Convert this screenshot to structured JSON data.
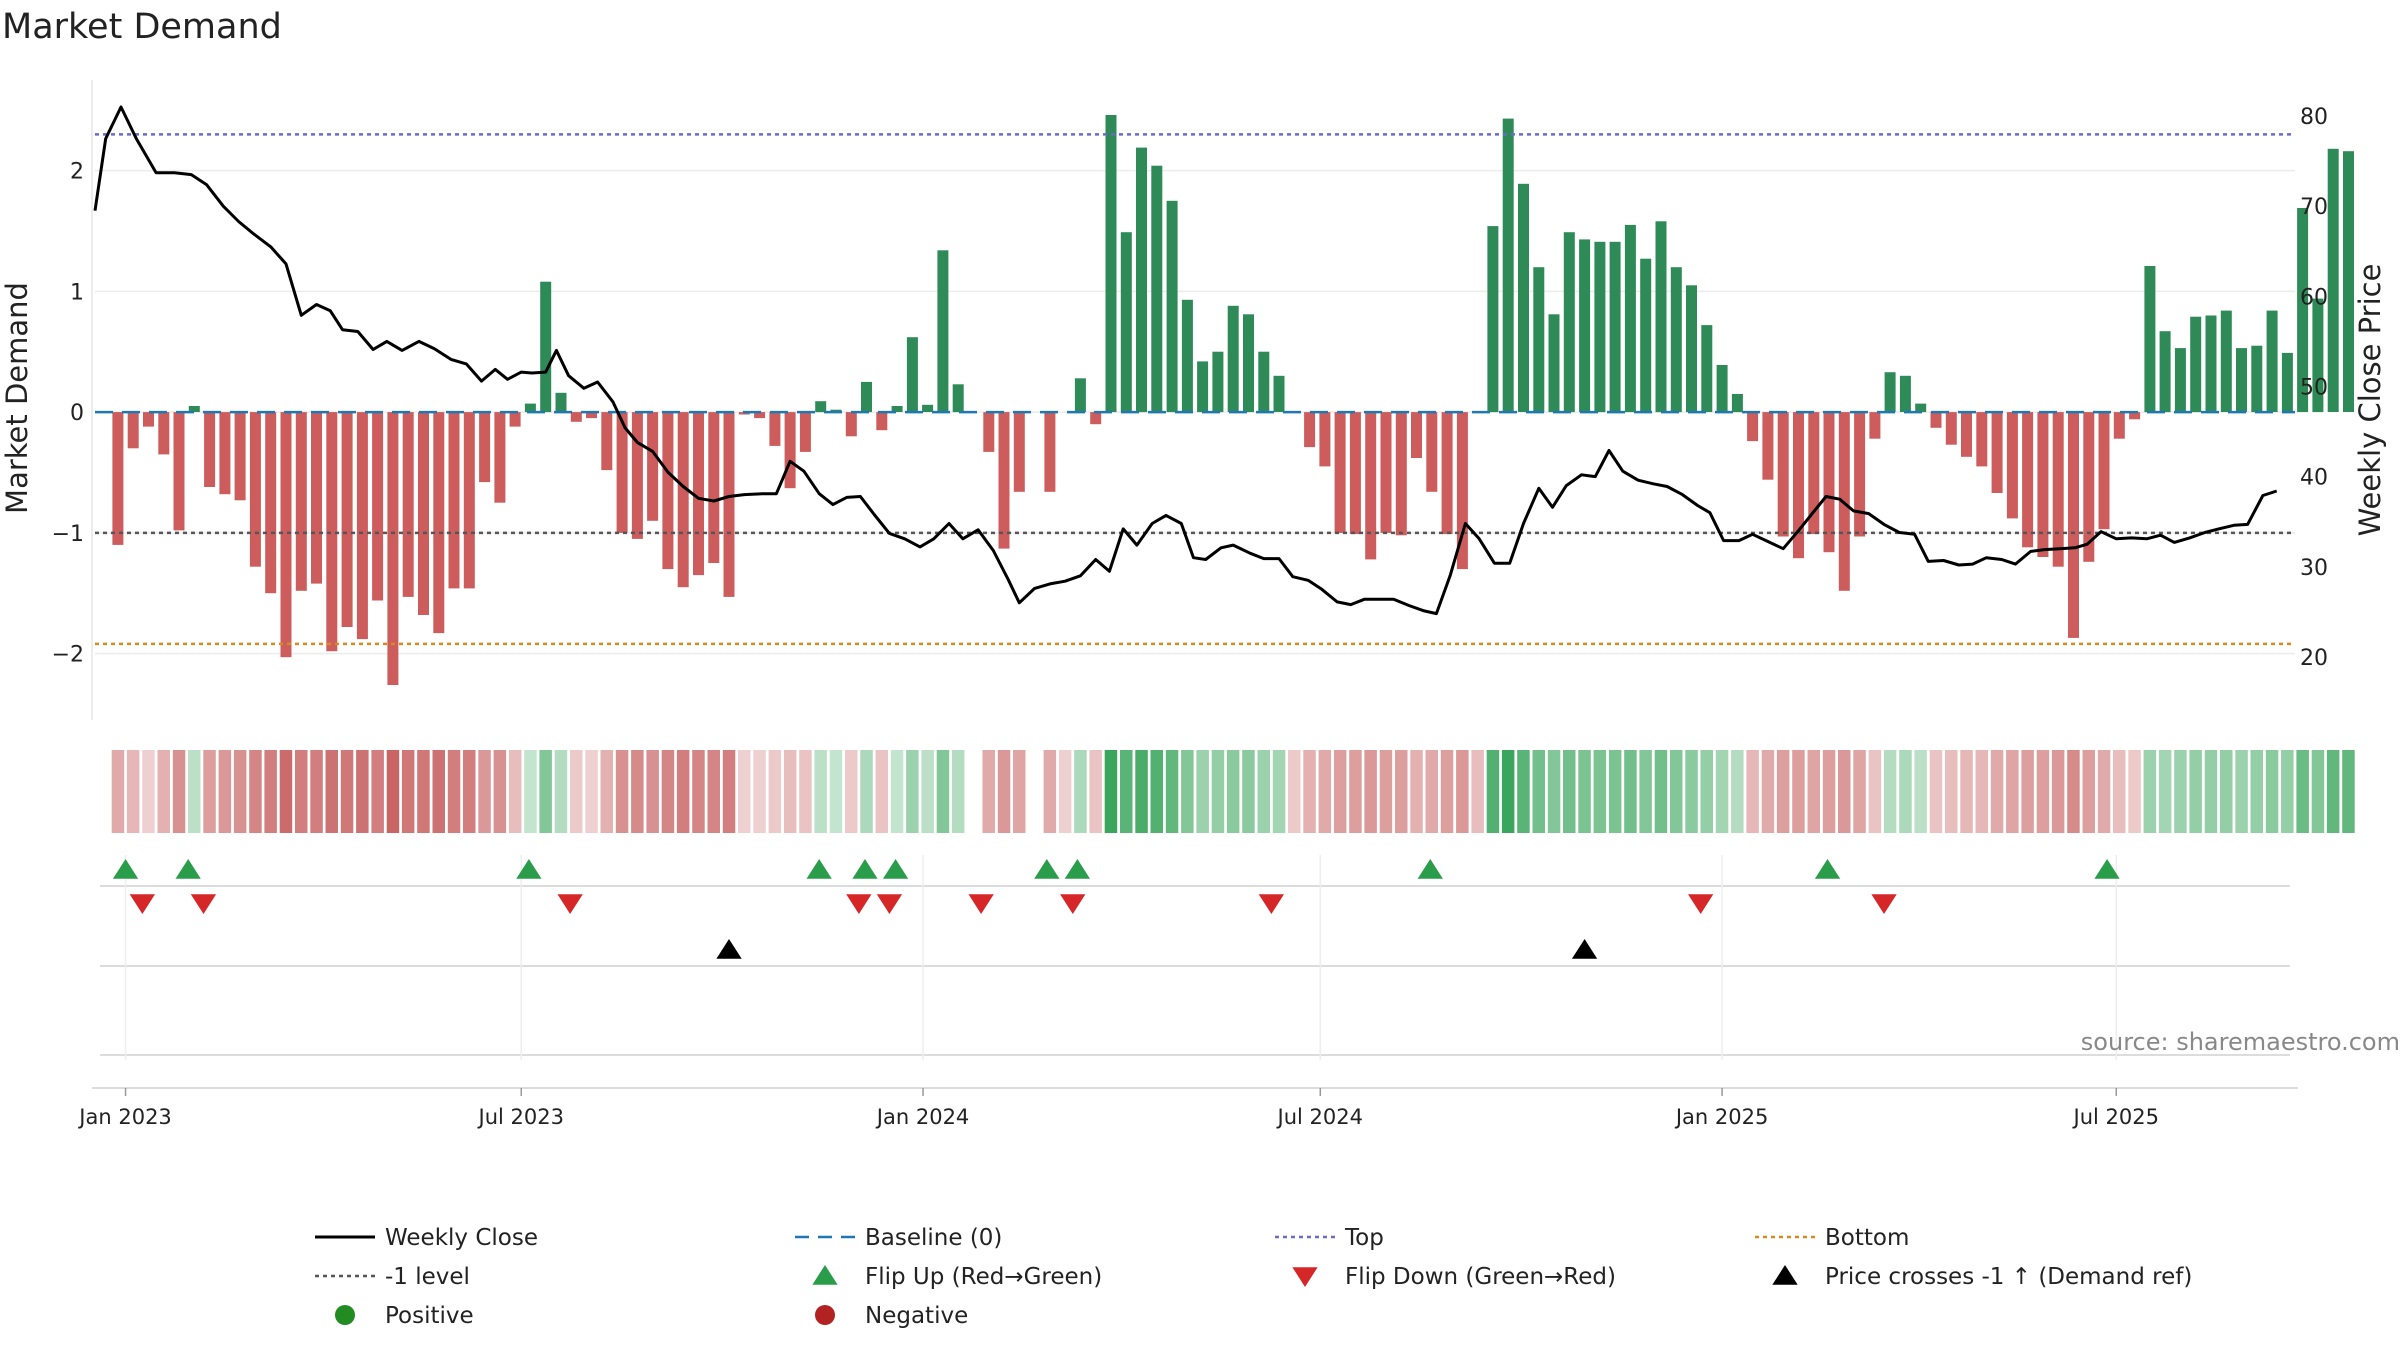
{
  "chart_data": {
    "type": "bar",
    "title": "Market Demand",
    "ylabel": "Market Demand",
    "y2label": "Weekly Close Price",
    "ylim": [
      -2.55,
      2.75
    ],
    "y2lim": [
      13,
      84
    ],
    "yticks": [
      {
        "value": 2,
        "label": "2"
      },
      {
        "value": 1,
        "label": "1"
      },
      {
        "value": 0,
        "label": "0"
      },
      {
        "value": -1,
        "label": "−1"
      },
      {
        "value": -2,
        "label": "−2"
      }
    ],
    "y2ticks": [
      {
        "value": 80,
        "label": "80"
      },
      {
        "value": 70,
        "label": "70"
      },
      {
        "value": 60,
        "label": "60"
      },
      {
        "value": 50,
        "label": "50"
      },
      {
        "value": 40,
        "label": "40"
      },
      {
        "value": 30,
        "label": "30"
      },
      {
        "value": 20,
        "label": "20"
      }
    ],
    "x_range_weeks": [
      -1.5,
      142.5
    ],
    "xticks": [
      {
        "label": "Jan 2023",
        "week": 0.5
      },
      {
        "label": "Jul 2023",
        "week": 26.4
      },
      {
        "label": "Jan 2024",
        "week": 52.7
      },
      {
        "label": "Jul 2024",
        "week": 78.7
      },
      {
        "label": "Jan 2025",
        "week": 105.0
      },
      {
        "label": "Jul 2025",
        "week": 130.8
      }
    ],
    "reference_lines": {
      "top": 2.3,
      "bottom": -1.92,
      "minus_one": -1,
      "baseline": 0
    },
    "demand": [
      -1.1,
      -0.3,
      -0.12,
      -0.35,
      -0.98,
      0.05,
      -0.62,
      -0.68,
      -0.73,
      -1.28,
      -1.5,
      -2.03,
      -1.48,
      -1.42,
      -1.98,
      -1.78,
      -1.88,
      -1.56,
      -2.26,
      -1.53,
      -1.68,
      -1.83,
      -1.46,
      -1.46,
      -0.58,
      -0.75,
      -0.12,
      0.07,
      1.08,
      0.16,
      -0.08,
      -0.05,
      -0.48,
      -1.0,
      -1.05,
      -0.9,
      -1.3,
      -1.45,
      -1.35,
      -1.25,
      -1.53,
      -0.02,
      -0.05,
      -0.28,
      -0.63,
      -0.33,
      0.09,
      0.02,
      -0.2,
      0.25,
      -0.15,
      0.05,
      0.62,
      0.06,
      1.34,
      0.23,
      0.0,
      -0.33,
      -1.13,
      -0.66,
      0.0,
      -0.66,
      0.0,
      0.28,
      -0.1,
      2.46,
      1.49,
      2.19,
      2.04,
      1.75,
      0.93,
      0.42,
      0.5,
      0.88,
      0.81,
      0.5,
      0.3,
      0.0,
      -0.29,
      -0.45,
      -1.0,
      -1.01,
      -1.22,
      -1.0,
      -1.02,
      -0.38,
      -0.66,
      -1.01,
      -1.3,
      0.0,
      1.54,
      2.43,
      1.89,
      1.2,
      0.81,
      1.49,
      1.43,
      1.41,
      1.41,
      1.55,
      1.27,
      1.58,
      1.2,
      1.05,
      0.72,
      0.39,
      0.15,
      -0.24,
      -0.56,
      -1.03,
      -1.21,
      -1.01,
      -1.16,
      -1.48,
      -1.03,
      -0.22,
      0.33,
      0.3,
      0.07,
      -0.13,
      -0.27,
      -0.37,
      -0.45,
      -0.67,
      -0.88,
      -1.12,
      -1.2,
      -1.28,
      -1.87,
      -1.24,
      -0.97,
      -0.22,
      -0.06,
      1.21,
      0.67,
      0.53,
      0.79,
      0.8,
      0.84,
      0.53,
      0.55,
      0.84,
      0.49,
      1.69,
      0.94,
      2.18,
      2.16
    ],
    "strip_intensity": [
      0.45,
      0.35,
      0.15,
      0.4,
      0.65,
      0.2,
      0.55,
      0.6,
      0.65,
      0.75,
      0.8,
      0.95,
      0.8,
      0.8,
      0.9,
      0.85,
      0.9,
      0.8,
      1.0,
      0.85,
      0.85,
      0.9,
      0.8,
      0.8,
      0.6,
      0.65,
      0.3,
      0.15,
      0.55,
      0.25,
      0.2,
      0.15,
      0.4,
      0.65,
      0.7,
      0.65,
      0.75,
      0.8,
      0.75,
      0.75,
      0.8,
      0.15,
      0.15,
      0.2,
      0.3,
      0.25,
      0.2,
      0.15,
      0.2,
      0.3,
      0.25,
      0.15,
      0.4,
      0.2,
      0.55,
      0.25,
      0.0,
      0.45,
      0.6,
      0.5,
      0.0,
      0.45,
      0.15,
      0.3,
      0.25,
      1.0,
      0.8,
      0.9,
      0.85,
      0.75,
      0.55,
      0.4,
      0.45,
      0.5,
      0.5,
      0.4,
      0.35,
      0.2,
      0.4,
      0.45,
      0.55,
      0.55,
      0.6,
      0.55,
      0.55,
      0.4,
      0.45,
      0.55,
      0.6,
      0.3,
      0.85,
      1.0,
      0.8,
      0.65,
      0.55,
      0.65,
      0.6,
      0.6,
      0.6,
      0.65,
      0.55,
      0.65,
      0.55,
      0.5,
      0.45,
      0.35,
      0.25,
      0.35,
      0.45,
      0.55,
      0.55,
      0.5,
      0.55,
      0.6,
      0.5,
      0.25,
      0.25,
      0.3,
      0.2,
      0.25,
      0.3,
      0.35,
      0.35,
      0.45,
      0.5,
      0.55,
      0.55,
      0.6,
      0.7,
      0.55,
      0.45,
      0.3,
      0.2,
      0.4,
      0.35,
      0.4,
      0.45,
      0.45,
      0.45,
      0.4,
      0.45,
      0.5,
      0.45,
      0.7,
      0.55,
      0.75,
      0.75
    ],
    "close": [
      [
        -1.5,
        69.5
      ],
      [
        -0.8,
        77.5
      ],
      [
        0.2,
        81.0
      ],
      [
        1.2,
        77.5
      ],
      [
        2.5,
        73.7
      ],
      [
        3.7,
        73.7
      ],
      [
        4.8,
        73.5
      ],
      [
        5.8,
        72.4
      ],
      [
        6.9,
        70.0
      ],
      [
        7.9,
        68.3
      ],
      [
        8.9,
        66.9
      ],
      [
        10.0,
        65.5
      ],
      [
        11.0,
        63.6
      ],
      [
        12.0,
        57.9
      ],
      [
        13.0,
        59.1
      ],
      [
        13.9,
        58.4
      ],
      [
        14.7,
        56.3
      ],
      [
        15.7,
        56.1
      ],
      [
        16.7,
        54.1
      ],
      [
        17.6,
        55.0
      ],
      [
        18.6,
        54.0
      ],
      [
        19.7,
        55.0
      ],
      [
        20.7,
        54.2
      ],
      [
        21.8,
        53.0
      ],
      [
        22.8,
        52.5
      ],
      [
        23.8,
        50.6
      ],
      [
        24.7,
        51.9
      ],
      [
        25.5,
        50.8
      ],
      [
        26.4,
        51.6
      ],
      [
        27.1,
        51.5
      ],
      [
        28.0,
        51.6
      ],
      [
        28.7,
        54.0
      ],
      [
        29.5,
        51.2
      ],
      [
        30.5,
        49.8
      ],
      [
        31.4,
        50.5
      ],
      [
        32.4,
        48.3
      ],
      [
        33.2,
        45.4
      ],
      [
        34.0,
        43.8
      ],
      [
        35.0,
        42.8
      ],
      [
        36.0,
        40.5
      ],
      [
        37.0,
        38.9
      ],
      [
        38.0,
        37.6
      ],
      [
        39.0,
        37.3
      ],
      [
        40.0,
        37.8
      ],
      [
        41.0,
        38.0
      ],
      [
        42.2,
        38.1
      ],
      [
        43.1,
        38.1
      ],
      [
        44.0,
        41.7
      ],
      [
        44.9,
        40.6
      ],
      [
        45.9,
        38.1
      ],
      [
        46.8,
        36.9
      ],
      [
        47.7,
        37.7
      ],
      [
        48.6,
        37.8
      ],
      [
        49.5,
        35.8
      ],
      [
        50.5,
        33.7
      ],
      [
        51.5,
        33.1
      ],
      [
        52.5,
        32.2
      ],
      [
        53.4,
        33.1
      ],
      [
        54.4,
        34.8
      ],
      [
        55.3,
        33.1
      ],
      [
        56.3,
        34.1
      ],
      [
        57.3,
        31.8
      ],
      [
        58.3,
        28.5
      ],
      [
        59.0,
        26.0
      ],
      [
        60.0,
        27.6
      ],
      [
        61.0,
        28.1
      ],
      [
        62.0,
        28.4
      ],
      [
        63.0,
        29.0
      ],
      [
        64.0,
        30.8
      ],
      [
        64.9,
        29.5
      ],
      [
        65.8,
        34.2
      ],
      [
        66.7,
        32.4
      ],
      [
        67.7,
        34.8
      ],
      [
        68.6,
        35.7
      ],
      [
        69.6,
        34.8
      ],
      [
        70.4,
        31.0
      ],
      [
        71.2,
        30.8
      ],
      [
        72.2,
        32.1
      ],
      [
        73.0,
        32.4
      ],
      [
        74.1,
        31.5
      ],
      [
        75.0,
        30.9
      ],
      [
        76.0,
        30.9
      ],
      [
        76.9,
        28.9
      ],
      [
        77.9,
        28.5
      ],
      [
        78.8,
        27.5
      ],
      [
        79.8,
        26.1
      ],
      [
        80.7,
        25.8
      ],
      [
        81.6,
        26.4
      ],
      [
        82.6,
        26.4
      ],
      [
        83.5,
        26.4
      ],
      [
        84.5,
        25.7
      ],
      [
        85.5,
        25.1
      ],
      [
        86.3,
        24.8
      ],
      [
        87.2,
        29.0
      ],
      [
        88.2,
        34.8
      ],
      [
        89.1,
        33.1
      ],
      [
        90.1,
        30.4
      ],
      [
        91.1,
        30.4
      ],
      [
        92.0,
        34.8
      ],
      [
        93.0,
        38.7
      ],
      [
        93.9,
        36.6
      ],
      [
        94.8,
        39.0
      ],
      [
        95.8,
        40.2
      ],
      [
        96.7,
        40.0
      ],
      [
        97.6,
        42.9
      ],
      [
        98.5,
        40.6
      ],
      [
        99.5,
        39.6
      ],
      [
        100.5,
        39.2
      ],
      [
        101.4,
        38.9
      ],
      [
        102.4,
        38.0
      ],
      [
        103.4,
        36.8
      ],
      [
        104.2,
        36.0
      ],
      [
        105.1,
        32.9
      ],
      [
        106.1,
        32.9
      ],
      [
        107.0,
        33.6
      ],
      [
        108.0,
        32.8
      ],
      [
        109.0,
        32.0
      ],
      [
        110.0,
        34.0
      ],
      [
        110.9,
        35.9
      ],
      [
        111.8,
        37.8
      ],
      [
        112.7,
        37.5
      ],
      [
        113.6,
        36.2
      ],
      [
        114.6,
        35.9
      ],
      [
        115.6,
        34.7
      ],
      [
        116.6,
        33.8
      ],
      [
        117.6,
        33.6
      ],
      [
        118.5,
        30.6
      ],
      [
        119.5,
        30.7
      ],
      [
        120.5,
        30.2
      ],
      [
        121.4,
        30.3
      ],
      [
        122.3,
        31.0
      ],
      [
        123.3,
        30.8
      ],
      [
        124.2,
        30.3
      ],
      [
        125.2,
        31.7
      ],
      [
        126.1,
        31.9
      ],
      [
        127.1,
        32.0
      ],
      [
        128.1,
        32.1
      ],
      [
        128.9,
        32.5
      ],
      [
        129.8,
        33.9
      ],
      [
        130.8,
        33.1
      ],
      [
        131.8,
        33.2
      ],
      [
        132.8,
        33.1
      ],
      [
        133.7,
        33.5
      ],
      [
        134.6,
        32.7
      ],
      [
        135.6,
        33.2
      ],
      [
        136.6,
        33.8
      ],
      [
        137.5,
        34.2
      ],
      [
        138.5,
        34.6
      ],
      [
        139.4,
        34.7
      ],
      [
        140.4,
        37.9
      ],
      [
        141.3,
        38.4
      ]
    ],
    "flip_up_weeks": [
      0.5,
      4.6,
      26.9,
      45.9,
      48.9,
      50.9,
      60.8,
      62.8,
      85.9,
      111.9,
      130.2
    ],
    "flip_down_weeks": [
      1.6,
      5.6,
      29.6,
      48.5,
      50.5,
      56.5,
      62.5,
      75.5,
      103.6,
      115.6
    ],
    "price_cross_weeks": [
      40.0,
      96.0
    ],
    "legend": [
      {
        "label": "Weekly Close",
        "marker": "solid-line",
        "color": "#000000"
      },
      {
        "label": "Baseline (0)",
        "marker": "dash-line",
        "color": "#1f77b4"
      },
      {
        "label": "Top",
        "marker": "dotted-line",
        "color": "#6b6bc7"
      },
      {
        "label": "Bottom",
        "marker": "dotted-line",
        "color": "#d98a1e"
      },
      {
        "label": "-1 level",
        "marker": "dotted-line",
        "color": "#555555"
      },
      {
        "label": "Flip Up (Red→Green)",
        "marker": "triangle-up",
        "color": "#2a9d4a"
      },
      {
        "label": "Flip Down (Green→Red)",
        "marker": "triangle-down",
        "color": "#d62728"
      },
      {
        "label": "Price crosses -1 ↑ (Demand ref)",
        "marker": "triangle-up",
        "color": "#000000"
      },
      {
        "label": "Positive",
        "marker": "circle",
        "color": "#228b22"
      },
      {
        "label": "Negative",
        "marker": "circle",
        "color": "#b22222"
      }
    ],
    "source": "source: sharemaestro.com"
  },
  "colors": {
    "positive_bar": "#2e8b57",
    "negative_bar": "#cd5c5c",
    "strip_positive_dark": "#3aa55c",
    "strip_negative_dark": "#c96565",
    "grid": "#ececec",
    "panel_line": "#d0d0d0"
  }
}
